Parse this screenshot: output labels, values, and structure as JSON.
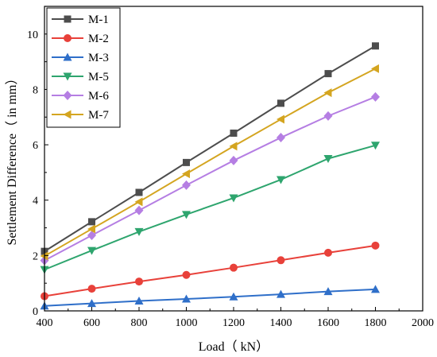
{
  "chart_data": {
    "type": "line",
    "title": "",
    "xlabel": "Load（ kN）",
    "ylabel": "Settlement Difference（ in mm）",
    "xlim": [
      400,
      2000
    ],
    "ylim": [
      0,
      11
    ],
    "x_ticks": [
      400,
      600,
      800,
      1000,
      1200,
      1400,
      1600,
      1800,
      2000
    ],
    "y_ticks": [
      0,
      2,
      4,
      6,
      8,
      10
    ],
    "grid": false,
    "legend_position": "top-left",
    "x": [
      400,
      600,
      800,
      1000,
      1200,
      1400,
      1600,
      1800
    ],
    "series": [
      {
        "name": "M-1",
        "color": "#4d4d4d",
        "marker": "square",
        "values": [
          2.15,
          3.22,
          4.28,
          5.36,
          6.42,
          7.5,
          8.57,
          9.57
        ]
      },
      {
        "name": "M-2",
        "color": "#e8413a",
        "marker": "circle",
        "values": [
          0.53,
          0.8,
          1.06,
          1.3,
          1.56,
          1.83,
          2.1,
          2.36
        ]
      },
      {
        "name": "M-3",
        "color": "#2f6fc9",
        "marker": "triangle-up",
        "values": [
          0.18,
          0.27,
          0.36,
          0.43,
          0.51,
          0.6,
          0.7,
          0.78
        ]
      },
      {
        "name": "M-5",
        "color": "#2ea56e",
        "marker": "triangle-down",
        "values": [
          1.49,
          2.18,
          2.86,
          3.48,
          4.08,
          4.74,
          5.5,
          5.98
        ]
      },
      {
        "name": "M-6",
        "color": "#b57ee3",
        "marker": "diamond",
        "values": [
          1.82,
          2.73,
          3.63,
          4.54,
          5.43,
          6.26,
          7.04,
          7.73
        ]
      },
      {
        "name": "M-7",
        "color": "#d4a520",
        "marker": "triangle-left",
        "values": [
          1.98,
          2.96,
          3.94,
          4.95,
          5.95,
          6.92,
          7.88,
          8.75
        ]
      }
    ]
  }
}
